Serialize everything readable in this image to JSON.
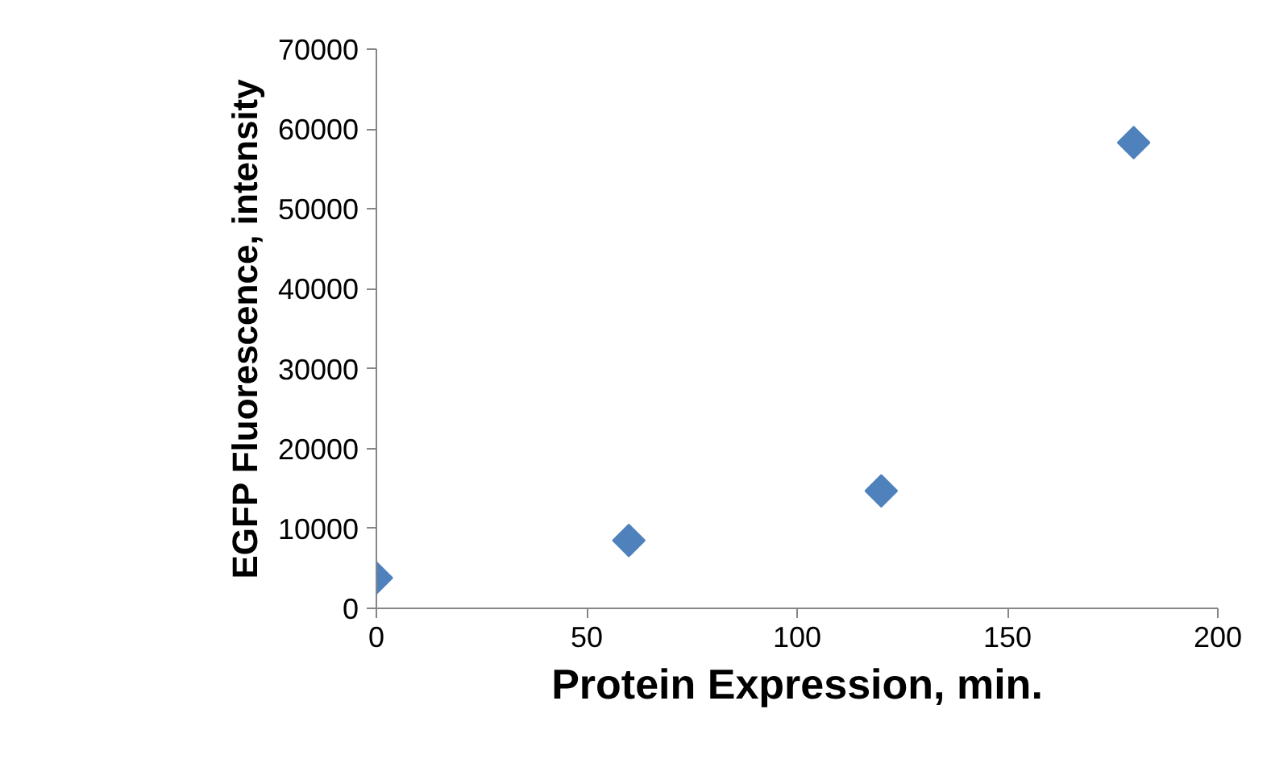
{
  "chart_data": {
    "type": "scatter",
    "xlabel": "Protein Expression, min.",
    "ylabel": "EGFP Fluorescence, intensity",
    "x": [
      0,
      60,
      120,
      180
    ],
    "series": [
      {
        "color": "#4f81bd",
        "values": [
          3800,
          8500,
          14700,
          58300
        ]
      }
    ],
    "xlim": [
      0,
      200
    ],
    "xticks": [
      0,
      50,
      100,
      150,
      200
    ],
    "ylim": [
      0,
      70000
    ],
    "yticks": [
      0,
      10000,
      20000,
      30000,
      40000,
      50000,
      60000,
      70000
    ],
    "marker": "diamond",
    "grid": false
  }
}
